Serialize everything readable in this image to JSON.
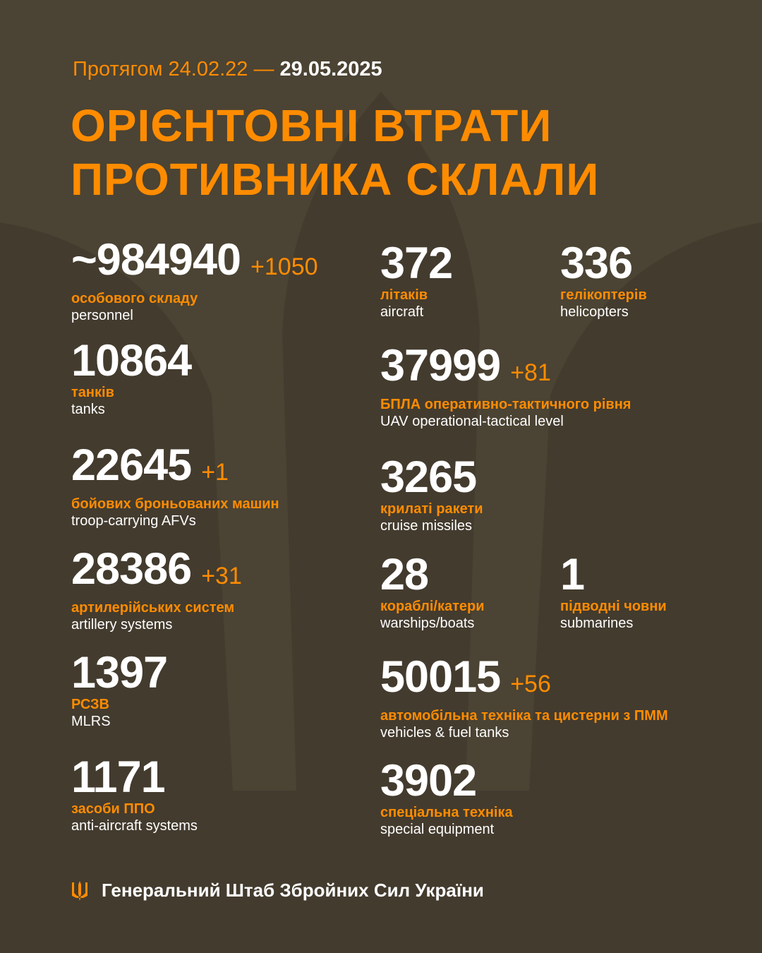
{
  "header": {
    "period_prefix": "Протягом 24.02.22 —",
    "period_end": "29.05.2025",
    "title_line1": "ОРІЄНТОВНІ ВТРАТИ",
    "title_line2": "ПРОТИВНИКА СКЛАЛИ"
  },
  "colors": {
    "background": "#4b4333",
    "accent": "#ff8c00",
    "text": "#ffffff"
  },
  "stats": {
    "personnel": {
      "value": "~984940",
      "delta": "+1050",
      "ua": "особового складу",
      "en": "personnel"
    },
    "tanks": {
      "value": "10864",
      "delta": "",
      "ua": "танків",
      "en": "tanks"
    },
    "afv": {
      "value": "22645",
      "delta": "+1",
      "ua": "бойових броньованих машин",
      "en": "troop-carrying AFVs"
    },
    "artillery": {
      "value": "28386",
      "delta": "+31",
      "ua": "артилерійських систем",
      "en": "artillery systems"
    },
    "mlrs": {
      "value": "1397",
      "delta": "",
      "ua": "РСЗВ",
      "en": "MLRS"
    },
    "air_defense": {
      "value": "1171",
      "delta": "",
      "ua": "засоби ППО",
      "en": "anti-aircraft systems"
    },
    "aircraft": {
      "value": "372",
      "delta": "",
      "ua": "літаків",
      "en": "aircraft"
    },
    "helicopters": {
      "value": "336",
      "delta": "",
      "ua": "гелікоптерів",
      "en": "helicopters"
    },
    "uav": {
      "value": "37999",
      "delta": "+81",
      "ua": "БПЛА оперативно-тактичного рівня",
      "en": "UAV operational-tactical level"
    },
    "cruise_missiles": {
      "value": "3265",
      "delta": "",
      "ua": "крилаті ракети",
      "en": "cruise missiles"
    },
    "warships": {
      "value": "28",
      "delta": "",
      "ua": "кораблі/катери",
      "en": "warships/boats"
    },
    "submarines": {
      "value": "1",
      "delta": "",
      "ua": "підводні човни",
      "en": "submarines"
    },
    "vehicles": {
      "value": "50015",
      "delta": "+56",
      "ua": "автомобільна техніка та цистерни з ПММ",
      "en": "vehicles & fuel tanks"
    },
    "special": {
      "value": "3902",
      "delta": "",
      "ua": "спеціальна техніка",
      "en": "special equipment"
    }
  },
  "footer": {
    "icon": "trident-icon",
    "text": "Генеральний Штаб Збройних Сил України"
  }
}
